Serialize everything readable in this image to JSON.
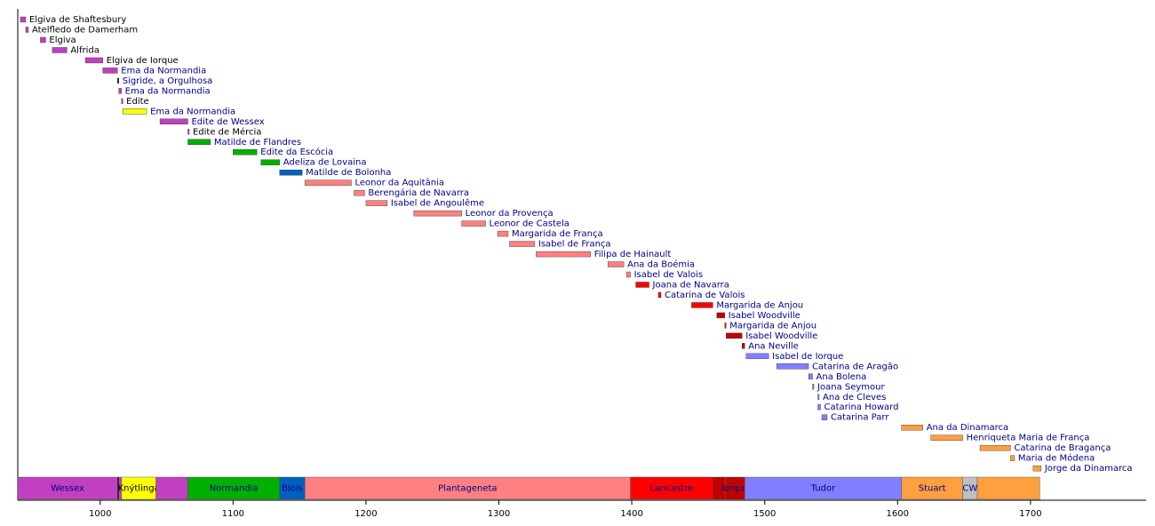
{
  "chart_data": {
    "type": "timeline",
    "xlim": [
      938,
      1787
    ],
    "xticks": [
      1000,
      1100,
      1200,
      1300,
      1400,
      1500,
      1600,
      1700
    ],
    "rows": [
      {
        "label": "Elgiva de Shaftesbury",
        "start": 940,
        "end": 944,
        "color": "#c040c0",
        "label_color": "#000000"
      },
      {
        "label": "Atelfledo de Damerham",
        "start": 944,
        "end": 946,
        "color": "#c040c0",
        "label_color": "#000000"
      },
      {
        "label": "Elgiva",
        "start": 955,
        "end": 959,
        "color": "#c040c0",
        "label_color": "#000000"
      },
      {
        "label": "Alfrida",
        "start": 964,
        "end": 975,
        "color": "#c040c0",
        "label_color": "#000000"
      },
      {
        "label": "Elgiva de Iorque",
        "start": 989,
        "end": 1002,
        "color": "#c040c0",
        "label_color": "#000000"
      },
      {
        "label": "Ema da Normandia",
        "start": 1002,
        "end": 1013,
        "color": "#c040c0",
        "label_color": "#00008b"
      },
      {
        "label": "Sigride, a Orgulhosa",
        "start": 1013,
        "end": 1014,
        "color": "#202020",
        "label_color": "#00008b"
      },
      {
        "label": "Ema da Normandia",
        "start": 1014,
        "end": 1016,
        "color": "#c040c0",
        "label_color": "#00008b"
      },
      {
        "label": "Edite",
        "start": 1016,
        "end": 1017,
        "color": "#c040c0",
        "label_color": "#000000"
      },
      {
        "label": "Ema da Normandia",
        "start": 1017,
        "end": 1035,
        "color": "#ffff00",
        "label_color": "#00008b"
      },
      {
        "label": "Edite de Wessex",
        "start": 1045,
        "end": 1066,
        "color": "#c040c0",
        "label_color": "#00008b"
      },
      {
        "label": "Edite de Mércia",
        "start": 1066,
        "end": 1067,
        "color": "#c040c0",
        "label_color": "#000000"
      },
      {
        "label": "Matilde de Flandres",
        "start": 1066,
        "end": 1083,
        "color": "#00b000",
        "label_color": "#00008b"
      },
      {
        "label": "Edite da Escócia",
        "start": 1100,
        "end": 1118,
        "color": "#00b000",
        "label_color": "#00008b"
      },
      {
        "label": "Adeliza de Lovaina",
        "start": 1121,
        "end": 1135,
        "color": "#00b000",
        "label_color": "#00008b"
      },
      {
        "label": "Matilde de Bolonha",
        "start": 1135,
        "end": 1152,
        "color": "#0060c0",
        "label_color": "#00008b"
      },
      {
        "label": "Leonor da Aquitânia",
        "start": 1154,
        "end": 1189,
        "color": "#ff8080",
        "label_color": "#00008b"
      },
      {
        "label": "Berengária de Navarra",
        "start": 1191,
        "end": 1199,
        "color": "#ff8080",
        "label_color": "#00008b"
      },
      {
        "label": "Isabel de Angoulême",
        "start": 1200,
        "end": 1216,
        "color": "#ff8080",
        "label_color": "#00008b"
      },
      {
        "label": "Leonor da Provença",
        "start": 1236,
        "end": 1272,
        "color": "#ff8080",
        "label_color": "#00008b"
      },
      {
        "label": "Leonor de Castela",
        "start": 1272,
        "end": 1290,
        "color": "#ff8080",
        "label_color": "#00008b"
      },
      {
        "label": "Margarida de França",
        "start": 1299,
        "end": 1307,
        "color": "#ff8080",
        "label_color": "#00008b"
      },
      {
        "label": "Isabel de França",
        "start": 1308,
        "end": 1327,
        "color": "#ff8080",
        "label_color": "#00008b"
      },
      {
        "label": "Filipa de Hainault",
        "start": 1328,
        "end": 1369,
        "color": "#ff8080",
        "label_color": "#00008b"
      },
      {
        "label": "Ana da Boémia",
        "start": 1382,
        "end": 1394,
        "color": "#ff8080",
        "label_color": "#00008b"
      },
      {
        "label": "Isabel de Valois",
        "start": 1396,
        "end": 1399,
        "color": "#ff8080",
        "label_color": "#00008b"
      },
      {
        "label": "Joana de Navarra",
        "start": 1403,
        "end": 1413,
        "color": "#ff0000",
        "label_color": "#00008b"
      },
      {
        "label": "Catarina de Valois",
        "start": 1420,
        "end": 1422,
        "color": "#ff0000",
        "label_color": "#00008b"
      },
      {
        "label": "Margarida de Anjou",
        "start": 1445,
        "end": 1461,
        "color": "#ff0000",
        "label_color": "#00008b"
      },
      {
        "label": "Isabel Woodville",
        "start": 1464,
        "end": 1470,
        "color": "#c00000",
        "label_color": "#00008b"
      },
      {
        "label": "Margarida de Anjou",
        "start": 1470,
        "end": 1471,
        "color": "#ff0000",
        "label_color": "#00008b"
      },
      {
        "label": "Isabel Woodville",
        "start": 1471,
        "end": 1483,
        "color": "#c00000",
        "label_color": "#00008b"
      },
      {
        "label": "Ana Neville",
        "start": 1483,
        "end": 1485,
        "color": "#c00000",
        "label_color": "#00008b"
      },
      {
        "label": "Isabel de Iorque",
        "start": 1486,
        "end": 1503,
        "color": "#8080ff",
        "label_color": "#00008b"
      },
      {
        "label": "Catarina de Aragão",
        "start": 1509,
        "end": 1533,
        "color": "#8080ff",
        "label_color": "#00008b"
      },
      {
        "label": "Ana Bolena",
        "start": 1533,
        "end": 1536,
        "color": "#8080ff",
        "label_color": "#00008b"
      },
      {
        "label": "Joana Seymour",
        "start": 1536,
        "end": 1537,
        "color": "#8080ff",
        "label_color": "#00008b"
      },
      {
        "label": "Ana de Cleves",
        "start": 1540,
        "end": 1540.5,
        "color": "#8080ff",
        "label_color": "#00008b"
      },
      {
        "label": "Catarina Howard",
        "start": 1540,
        "end": 1542,
        "color": "#8080ff",
        "label_color": "#00008b"
      },
      {
        "label": "Catarina Parr",
        "start": 1543,
        "end": 1547,
        "color": "#8080ff",
        "label_color": "#00008b"
      },
      {
        "label": "Ana da Dinamarca",
        "start": 1603,
        "end": 1619,
        "color": "#ffa040",
        "label_color": "#00008b"
      },
      {
        "label": "Henriqueta Maria de França",
        "start": 1625,
        "end": 1649,
        "color": "#ffa040",
        "label_color": "#00008b"
      },
      {
        "label": "Catarina de Bragança",
        "start": 1662,
        "end": 1685,
        "color": "#ffa040",
        "label_color": "#00008b"
      },
      {
        "label": "Maria de Módena",
        "start": 1685,
        "end": 1688,
        "color": "#ffa040",
        "label_color": "#00008b"
      },
      {
        "label": "Jorge da Dinamarca",
        "start": 1702,
        "end": 1708,
        "color": "#ffa040",
        "label_color": "#00008b"
      }
    ],
    "bands": [
      {
        "label": "Wessex",
        "start": 938,
        "end": 1013,
        "color": "#c040c0",
        "label_color": "#00008b"
      },
      {
        "label": null,
        "start": 1013,
        "end": 1014,
        "color": "#202020",
        "label_color": "#000000"
      },
      {
        "label": null,
        "start": 1014,
        "end": 1016,
        "color": "#c040c0",
        "label_color": "#000000"
      },
      {
        "label": "Knýtlinga",
        "start": 1016,
        "end": 1042,
        "color": "#ffff00",
        "label_color": "#000000"
      },
      {
        "label": null,
        "start": 1042,
        "end": 1066,
        "color": "#c040c0",
        "label_color": "#000000"
      },
      {
        "label": "Normandia",
        "start": 1066,
        "end": 1135,
        "color": "#00b000",
        "label_color": "#00008b"
      },
      {
        "label": "Blois",
        "start": 1135,
        "end": 1154,
        "color": "#0060c0",
        "label_color": "#00008b"
      },
      {
        "label": "Plantageneta",
        "start": 1154,
        "end": 1399,
        "color": "#ff8080",
        "label_color": "#00008b"
      },
      {
        "label": "Lancastre",
        "start": 1399,
        "end": 1461,
        "color": "#ff0000",
        "label_color": "#00008b"
      },
      {
        "label": null,
        "start": 1461,
        "end": 1470,
        "color": "#c00000",
        "label_color": "#000000"
      },
      {
        "label": null,
        "start": 1470,
        "end": 1471,
        "color": "#ff0000",
        "label_color": "#000000"
      },
      {
        "label": "Iorque",
        "start": 1471,
        "end": 1485,
        "color": "#c00000",
        "label_color": "#00008b"
      },
      {
        "label": "Tudor",
        "start": 1485,
        "end": 1603,
        "color": "#8080ff",
        "label_color": "#00008b"
      },
      {
        "label": "Stuart",
        "start": 1603,
        "end": 1649,
        "color": "#ffa040",
        "label_color": "#00008b"
      },
      {
        "label": "CW",
        "start": 1649,
        "end": 1660,
        "color": "#c0c0c0",
        "label_color": "#00008b"
      },
      {
        "label": null,
        "start": 1660,
        "end": 1707,
        "color": "#ffa040",
        "label_color": "#000000"
      }
    ]
  }
}
